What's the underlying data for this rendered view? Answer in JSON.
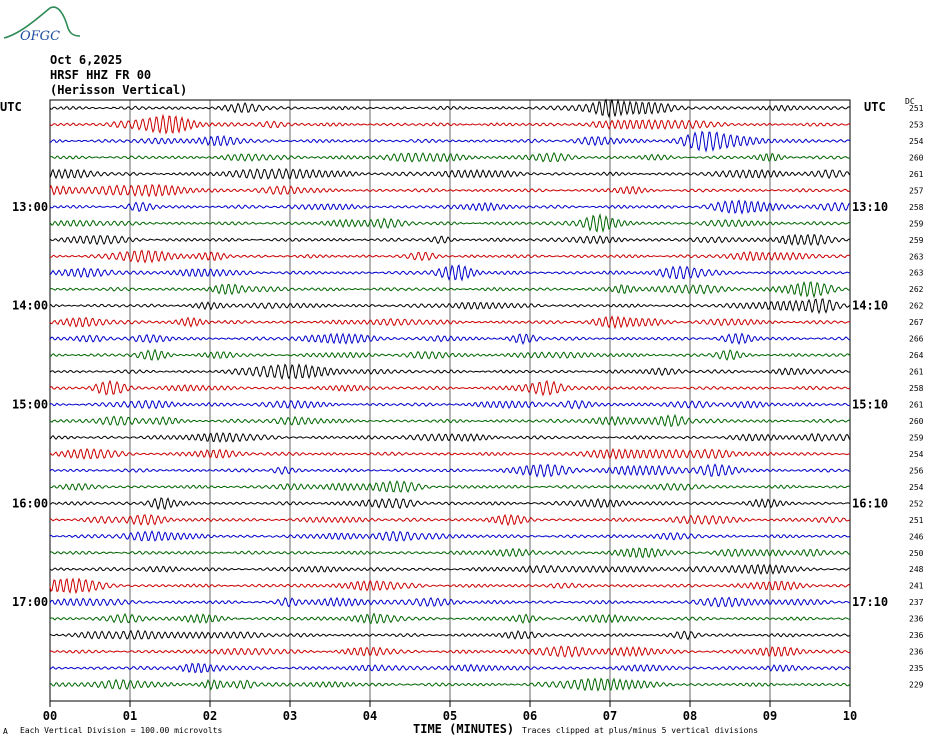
{
  "logo": {
    "text": "OFGC"
  },
  "header": {
    "date": "Oct 6,2025",
    "station": "HRSF HHZ FR 00",
    "location": "(Herisson Vertical)"
  },
  "left_axis_label": "UTC",
  "right_axis_label": "UTC",
  "dc_label": "DC",
  "footer": {
    "scale_note": "Each Vertical Division =  100.00 microvolts",
    "clip_note": "Traces clipped at plus/minus 5 vertical divisions",
    "corner_mark": "A"
  },
  "colors": {
    "trace_cycle": [
      "#000000",
      "#cc0000",
      "#0000cc",
      "#006600"
    ],
    "grid": "#000000"
  },
  "chart_data": {
    "type": "line",
    "title": "",
    "xlabel": "TIME (MINUTES)",
    "xlim": [
      0,
      10
    ],
    "x_ticks": [
      "00",
      "01",
      "02",
      "03",
      "04",
      "05",
      "06",
      "07",
      "08",
      "09",
      "10"
    ],
    "trace_count": 36,
    "traces_per_hour": 6,
    "minutes_per_trace": 10,
    "left_time_labels": [
      {
        "trace_index": 6,
        "label": "13:00"
      },
      {
        "trace_index": 12,
        "label": "14:00"
      },
      {
        "trace_index": 18,
        "label": "15:00"
      },
      {
        "trace_index": 24,
        "label": "16:00"
      },
      {
        "trace_index": 30,
        "label": "17:00"
      }
    ],
    "right_time_labels": [
      {
        "trace_index": 6,
        "label": "13:10"
      },
      {
        "trace_index": 12,
        "label": "14:10"
      },
      {
        "trace_index": 18,
        "label": "15:10"
      },
      {
        "trace_index": 24,
        "label": "16:10"
      },
      {
        "trace_index": 30,
        "label": "17:10"
      }
    ],
    "dc_offsets": [
      251,
      253,
      254,
      260,
      261,
      257,
      258,
      259,
      259,
      263,
      263,
      262,
      262,
      267,
      266,
      264,
      261,
      258,
      261,
      260,
      259,
      254,
      256,
      254,
      252,
      251,
      246,
      250,
      248,
      241,
      237,
      236,
      236,
      236,
      235,
      229
    ],
    "vertical_division_microvolts": 100.0,
    "clip_divisions": 5
  }
}
